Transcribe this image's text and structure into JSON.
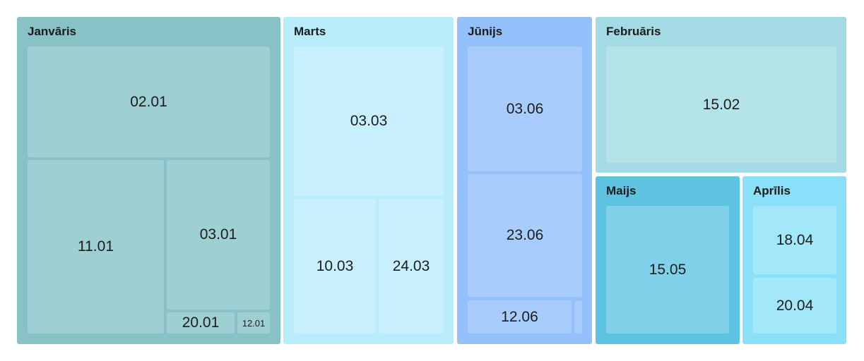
{
  "chart_data": {
    "type": "treemap",
    "groups": [
      {
        "name": "Janvāris",
        "color": "#88c2c7",
        "leaf_color": "#9ecfd2",
        "items": [
          {
            "label": "02.01"
          },
          {
            "label": "11.01"
          },
          {
            "label": "03.01"
          },
          {
            "label": "20.01"
          },
          {
            "label": "12.01"
          }
        ]
      },
      {
        "name": "Marts",
        "color": "#b8ecfb",
        "leaf_color": "#c7f0fc",
        "items": [
          {
            "label": "03.03"
          },
          {
            "label": "10.03"
          },
          {
            "label": "24.03"
          }
        ]
      },
      {
        "name": "Jūnijs",
        "color": "#94c0fc",
        "leaf_color": "#a8cdfd",
        "items": [
          {
            "label": "03.06"
          },
          {
            "label": "23.06"
          },
          {
            "label": "12.06"
          },
          {
            "label": ""
          }
        ]
      },
      {
        "name": "Februāris",
        "color": "#a3dae3",
        "leaf_color": "#b3e2e8",
        "items": [
          {
            "label": "15.02"
          }
        ]
      },
      {
        "name": "Maijs",
        "color": "#5ec2e1",
        "leaf_color": "#7fd0e8",
        "items": [
          {
            "label": "15.05"
          }
        ]
      },
      {
        "name": "Aprīlis",
        "color": "#8ae0f8",
        "leaf_color": "#a3e7fa",
        "items": [
          {
            "label": "18.04"
          },
          {
            "label": "20.04"
          }
        ]
      }
    ]
  }
}
